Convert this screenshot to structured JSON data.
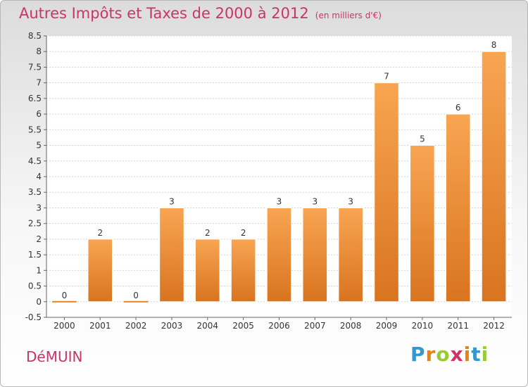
{
  "page": {
    "title": "Autres Impôts et Taxes de 2000 à 2012",
    "unit": "(en milliers d'€)",
    "commune": "DéMUIN",
    "logo": "Proxiti",
    "logo_colors": [
      "#3399cc",
      "#e8811a",
      "#99cc33",
      "#cc3366",
      "#e8811a",
      "#3399cc",
      "#99cc33"
    ]
  },
  "chart_data": {
    "type": "bar",
    "categories": [
      "2000",
      "2001",
      "2002",
      "2003",
      "2004",
      "2005",
      "2006",
      "2007",
      "2008",
      "2009",
      "2010",
      "2011",
      "2012"
    ],
    "values": [
      0,
      2,
      0,
      3,
      2,
      2,
      3,
      3,
      3,
      7,
      5,
      6,
      8
    ],
    "data_labels": [
      "0",
      "2",
      "0",
      "3",
      "2",
      "2",
      "3",
      "3",
      "3",
      "7",
      "5",
      "6",
      "8"
    ],
    "ylim": [
      -0.5,
      8.5
    ],
    "yticks": [
      -0.5,
      0,
      0.5,
      1,
      1.5,
      2,
      2.5,
      3,
      3.5,
      4,
      4.5,
      5,
      5.5,
      6,
      6.5,
      7,
      7.5,
      8,
      8.5
    ],
    "ytick_labels": [
      "-0.5",
      "0",
      "0.5",
      "1",
      "1.5",
      "2",
      "2.5",
      "3",
      "3.5",
      "4",
      "4.5",
      "5",
      "5.5",
      "6",
      "6.5",
      "7",
      "7.5",
      "8",
      "8.5"
    ],
    "grid": true,
    "bar_color_top": "#f8a552",
    "bar_color_bottom": "#d9741f",
    "zero_bar_color": "#e8811a"
  }
}
